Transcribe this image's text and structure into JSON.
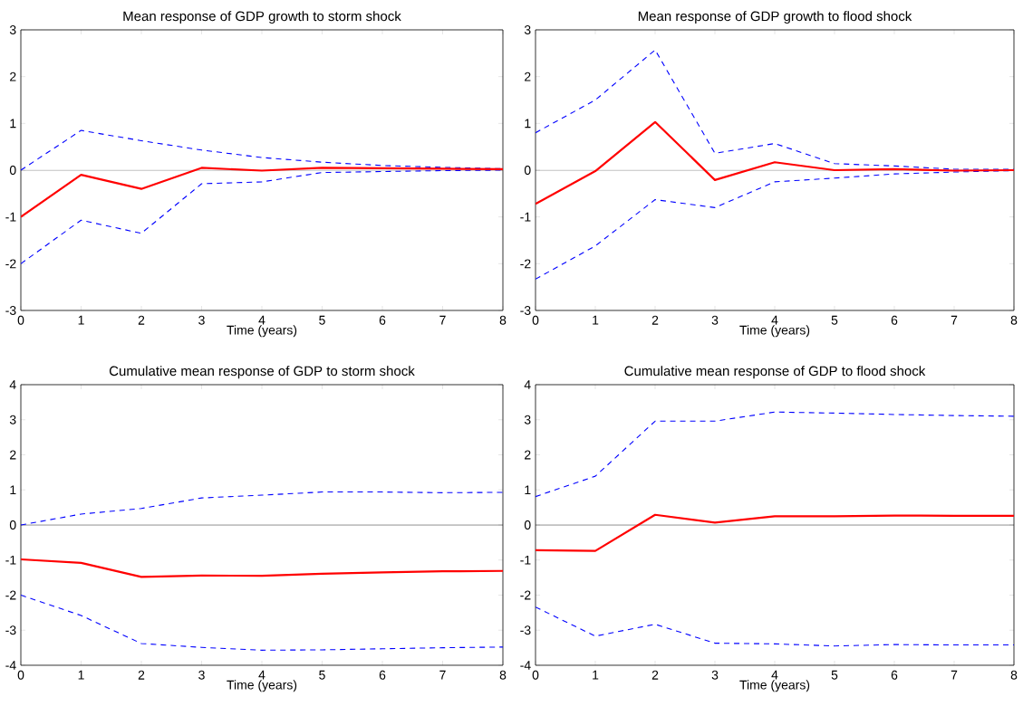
{
  "chart_data": [
    {
      "type": "line",
      "title": "Mean response of GDP growth to storm shock",
      "xlabel": "Time (years)",
      "x": [
        0,
        1,
        2,
        3,
        4,
        5,
        6,
        7,
        8
      ],
      "xlim": [
        0,
        8
      ],
      "xticks": [
        0,
        1,
        2,
        3,
        4,
        5,
        6,
        7,
        8
      ],
      "ylim": [
        -3,
        3
      ],
      "yticks": [
        -3,
        -2,
        -1,
        0,
        1,
        2,
        3
      ],
      "grid": false,
      "legend": false,
      "ref_lines": [
        {
          "axis": "y",
          "value": 0,
          "color": "#000000"
        }
      ],
      "series": [
        {
          "color": "#0000ff",
          "line_style": "dashed",
          "values": [
            0,
            0.85,
            0.63,
            0.43,
            0.27,
            0.17,
            0.1,
            0.06,
            0.03
          ]
        },
        {
          "color": "#0000ff",
          "line_style": "dashed",
          "values": [
            -2,
            -1.07,
            -1.35,
            -0.29,
            -0.25,
            -0.05,
            -0.03,
            -0.01,
            0
          ]
        },
        {
          "color": "#ff0000",
          "line_style": "solid",
          "values": [
            -1,
            -0.1,
            -0.4,
            0.05,
            -0.01,
            0.05,
            0.04,
            0.03,
            0.02
          ]
        }
      ]
    },
    {
      "type": "line",
      "title": "Mean response of GDP growth to flood shock",
      "xlabel": "Time (years)",
      "x": [
        0,
        1,
        2,
        3,
        4,
        5,
        6,
        7,
        8
      ],
      "xlim": [
        0,
        8
      ],
      "xticks": [
        0,
        1,
        2,
        3,
        4,
        5,
        6,
        7,
        8
      ],
      "ylim": [
        -3,
        3
      ],
      "yticks": [
        -3,
        -2,
        -1,
        0,
        1,
        2,
        3
      ],
      "grid": false,
      "legend": false,
      "ref_lines": [
        {
          "axis": "y",
          "value": 0,
          "color": "#000000"
        }
      ],
      "series": [
        {
          "color": "#0000ff",
          "line_style": "dashed",
          "values": [
            0.8,
            1.5,
            2.57,
            0.36,
            0.57,
            0.14,
            0.09,
            0.02,
            0.02
          ]
        },
        {
          "color": "#0000ff",
          "line_style": "dashed",
          "values": [
            -2.33,
            -1.62,
            -0.63,
            -0.8,
            -0.25,
            -0.17,
            -0.08,
            -0.04,
            -0.01
          ]
        },
        {
          "color": "#ff0000",
          "line_style": "solid",
          "values": [
            -0.72,
            -0.02,
            1.03,
            -0.21,
            0.17,
            0.0,
            0.02,
            -0.01,
            0.0
          ]
        }
      ]
    },
    {
      "type": "line",
      "title": "Cumulative mean response of GDP to storm shock",
      "xlabel": "Time (years)",
      "x": [
        0,
        1,
        2,
        3,
        4,
        5,
        6,
        7,
        8
      ],
      "xlim": [
        0,
        8
      ],
      "xticks": [
        0,
        1,
        2,
        3,
        4,
        5,
        6,
        7,
        8
      ],
      "ylim": [
        -4,
        4
      ],
      "yticks": [
        -4,
        -3,
        -2,
        -1,
        0,
        1,
        2,
        3,
        4
      ],
      "grid": false,
      "legend": false,
      "ref_lines": [
        {
          "axis": "y",
          "value": 0,
          "color": "#000000"
        }
      ],
      "series": [
        {
          "color": "#0000ff",
          "line_style": "dashed",
          "values": [
            0,
            0.31,
            0.47,
            0.77,
            0.85,
            0.94,
            0.94,
            0.92,
            0.93
          ]
        },
        {
          "color": "#0000ff",
          "line_style": "dashed",
          "values": [
            -2.0,
            -2.58,
            -3.38,
            -3.49,
            -3.57,
            -3.56,
            -3.53,
            -3.5,
            -3.48
          ]
        },
        {
          "color": "#ff0000",
          "line_style": "solid",
          "values": [
            -0.98,
            -1.08,
            -1.48,
            -1.44,
            -1.45,
            -1.39,
            -1.35,
            -1.32,
            -1.31
          ]
        }
      ]
    },
    {
      "type": "line",
      "title": "Cumulative mean response of GDP to flood shock",
      "xlabel": "Time (years)",
      "x": [
        0,
        1,
        2,
        3,
        4,
        5,
        6,
        7,
        8
      ],
      "xlim": [
        0,
        8
      ],
      "xticks": [
        0,
        1,
        2,
        3,
        4,
        5,
        6,
        7,
        8
      ],
      "ylim": [
        -4,
        4
      ],
      "yticks": [
        -4,
        -3,
        -2,
        -1,
        0,
        1,
        2,
        3,
        4
      ],
      "grid": false,
      "legend": false,
      "ref_lines": [
        {
          "axis": "y",
          "value": 0,
          "color": "#000000"
        }
      ],
      "series": [
        {
          "color": "#0000ff",
          "line_style": "dashed",
          "values": [
            0.81,
            1.39,
            2.96,
            2.96,
            3.22,
            3.19,
            3.15,
            3.12,
            3.1
          ]
        },
        {
          "color": "#0000ff",
          "line_style": "dashed",
          "values": [
            -2.34,
            -3.17,
            -2.83,
            -3.37,
            -3.39,
            -3.45,
            -3.41,
            -3.42,
            -3.42
          ]
        },
        {
          "color": "#ff0000",
          "line_style": "solid",
          "values": [
            -0.72,
            -0.74,
            0.29,
            0.07,
            0.25,
            0.25,
            0.27,
            0.26,
            0.26
          ]
        }
      ]
    }
  ]
}
